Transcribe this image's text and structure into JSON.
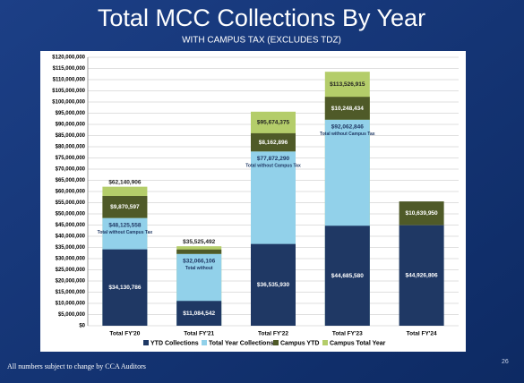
{
  "title": "Total MCC Collections By Year",
  "subtitle": "WITH CAMPUS TAX (EXCLUDES TDZ)",
  "footer": "All numbers subject to change by CCA Auditors",
  "page_number": "26",
  "chart_data": {
    "type": "bar",
    "categories": [
      "Total FY'20",
      "Total FY'21",
      "Total FY'22",
      "Total FY'23",
      "Total FY'24"
    ],
    "series": [
      {
        "name": "YTD Collections",
        "color": "#1f3864",
        "values": [
          34130786,
          11084542,
          36535930,
          44685580,
          44926806
        ],
        "value_labels": [
          "$34,130,786",
          "$11,084,542",
          "$36,535,930",
          "$44,685,580",
          "$44,926,806"
        ]
      },
      {
        "name": "Total Year Collections",
        "color": "#92d1ea",
        "values": [
          48125558,
          32066106,
          77872290,
          92062846,
          null
        ],
        "value_labels": [
          "$48,125,558",
          "$32,066,106",
          "$77,872,290",
          "$92,062,846",
          null
        ],
        "notes": [
          "Total without Campus Tax",
          "Total without",
          "Total without Campus Tax",
          "Total without Campus Tax",
          null
        ]
      },
      {
        "name": "Campus YTD",
        "color": "#4f5a28",
        "values": [
          9870597,
          2000000,
          8162896,
          10248434,
          10639950
        ],
        "value_labels": [
          "$9,870,597",
          null,
          "$8,162,896",
          "$10,248,434",
          "$10,639,950"
        ]
      },
      {
        "name": "Campus Total Year",
        "color": "#b4cd6a",
        "values": [
          62140906,
          35525492,
          95674375,
          113526915,
          null
        ],
        "value_labels": [
          "$62,140,906",
          "$35,525,492",
          "$95,674,375",
          "$113,526,915",
          null
        ]
      }
    ],
    "ylim": [
      0,
      120000000
    ],
    "yticks": [
      {
        "value": 0,
        "label": "$0"
      },
      {
        "value": 5000000,
        "label": "$5,000,000"
      },
      {
        "value": 10000000,
        "label": "$10,000,000"
      },
      {
        "value": 15000000,
        "label": "$15,000,000"
      },
      {
        "value": 20000000,
        "label": "$20,000,000"
      },
      {
        "value": 25000000,
        "label": "$25,000,000"
      },
      {
        "value": 30000000,
        "label": "$30,000,000"
      },
      {
        "value": 35000000,
        "label": "$35,000,000"
      },
      {
        "value": 40000000,
        "label": "$40,000,000"
      },
      {
        "value": 45000000,
        "label": "$45,000,000"
      },
      {
        "value": 50000000,
        "label": "$50,000,000"
      },
      {
        "value": 55000000,
        "label": "$55,000,000"
      },
      {
        "value": 60000000,
        "label": "$60,000,000"
      },
      {
        "value": 65000000,
        "label": "$65,000,000"
      },
      {
        "value": 70000000,
        "label": "$70,000,000"
      },
      {
        "value": 75000000,
        "label": "$75,000,000"
      },
      {
        "value": 80000000,
        "label": "$80,000,000"
      },
      {
        "value": 85000000,
        "label": "$85,000,000"
      },
      {
        "value": 90000000,
        "label": "$90,000,000"
      },
      {
        "value": 95000000,
        "label": "$95,000,000"
      },
      {
        "value": 100000000,
        "label": "$100,000,000"
      },
      {
        "value": 105000000,
        "label": "$105,000,000"
      },
      {
        "value": 110000000,
        "label": "$110,000,000"
      },
      {
        "value": 115000000,
        "label": "$115,000,000"
      },
      {
        "value": 120000000,
        "label": "$120,000,000"
      }
    ],
    "grid": true,
    "legend": "bottom"
  }
}
